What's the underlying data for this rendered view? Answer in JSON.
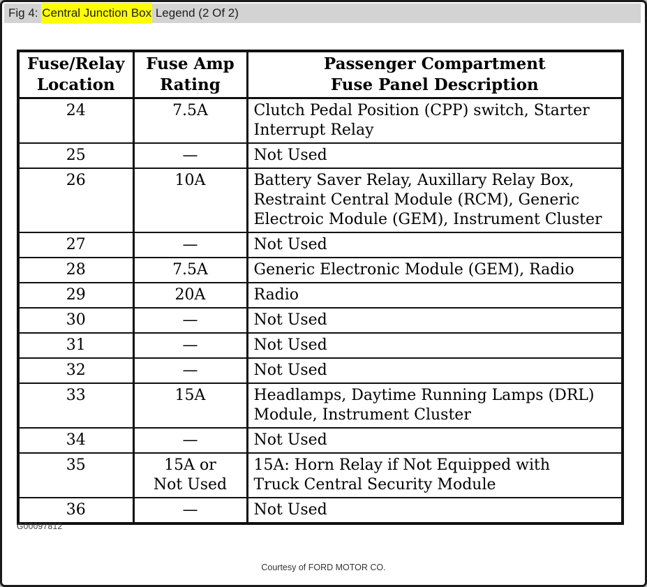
{
  "titlebar": {
    "prefix": "Fig 4: ",
    "highlighted": "Central Junction Box",
    "suffix": " Legend (2 Of 2)"
  },
  "colors": {
    "titlebar_bg": "#d3d3d3",
    "highlight": "#ffff00",
    "page_bg": "#ffffff",
    "frame": "#1a1a1a",
    "table_border": "#101010",
    "text": "#000000",
    "footer_text": "#3a3a3a"
  },
  "table": {
    "headers": [
      {
        "label": "Fuse/Relay\nLocation"
      },
      {
        "label": "Fuse Amp\nRating"
      },
      {
        "label": "Passenger Compartment\nFuse Panel Description"
      }
    ],
    "rows": [
      {
        "location": "24",
        "rating": "7.5A",
        "description": "Clutch Pedal Position (CPP) switch, Starter\nInterrupt Relay"
      },
      {
        "location": "25",
        "rating": "—",
        "description": "Not Used"
      },
      {
        "location": "26",
        "rating": "10A",
        "description": "Battery Saver Relay, Auxillary Relay Box,\nRestraint Central Module (RCM), Generic\nElectroic Module (GEM), Instrument Cluster"
      },
      {
        "location": "27",
        "rating": "—",
        "description": "Not Used"
      },
      {
        "location": "28",
        "rating": "7.5A",
        "description": "Generic Electronic Module (GEM), Radio"
      },
      {
        "location": "29",
        "rating": "20A",
        "description": "Radio"
      },
      {
        "location": "30",
        "rating": "—",
        "description": "Not Used"
      },
      {
        "location": "31",
        "rating": "—",
        "description": "Not Used"
      },
      {
        "location": "32",
        "rating": "—",
        "description": "Not Used"
      },
      {
        "location": "33",
        "rating": "15A",
        "description": "Headlamps, Daytime Running Lamps (DRL)\nModule, Instrument Cluster"
      },
      {
        "location": "34",
        "rating": "—",
        "description": "Not Used"
      },
      {
        "location": "35",
        "rating": "15A or\nNot Used",
        "description": "15A: Horn Relay if Not Equipped with\nTruck Central Security Module"
      },
      {
        "location": "36",
        "rating": "—",
        "description": "Not Used"
      }
    ]
  },
  "footer": {
    "figure_id": "G00097812",
    "courtesy": "Courtesy of FORD MOTOR CO."
  }
}
